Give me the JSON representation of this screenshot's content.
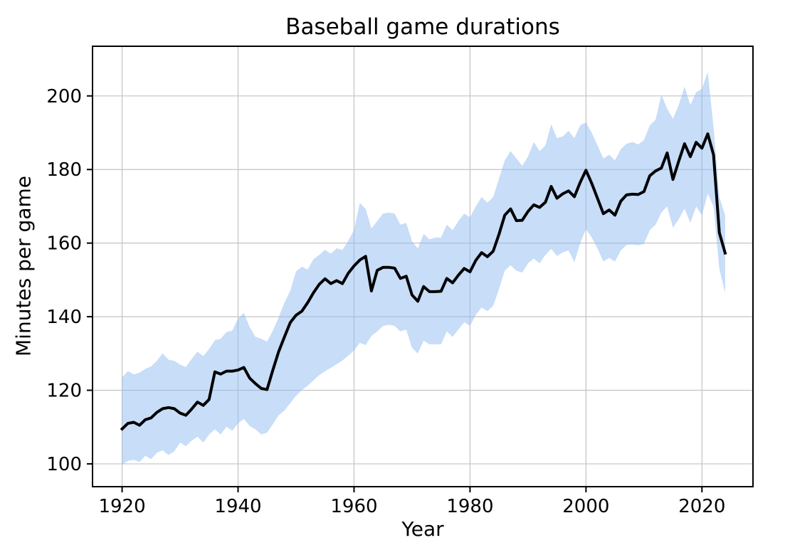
{
  "figure": {
    "title": "Baseball game durations",
    "x_axis_label": "Year",
    "y_axis_label": "Minutes per game"
  },
  "chart_data": {
    "type": "line",
    "title": "Baseball game durations",
    "xlabel": "Year",
    "ylabel": "Minutes per game",
    "legend": "none",
    "grid": true,
    "grid_color": "#c3c3c3",
    "line_color": "#000000",
    "band_fill": "#8fbbf1",
    "band_opacity": 0.5,
    "xlim": [
      1914.9,
      2028.8
    ],
    "ylim": [
      93.8,
      213.5
    ],
    "x_ticks": [
      1920,
      1940,
      1960,
      1980,
      2000,
      2020
    ],
    "y_ticks": [
      100,
      120,
      140,
      160,
      180,
      200
    ],
    "years": [
      1920,
      1921,
      1922,
      1923,
      1924,
      1925,
      1926,
      1927,
      1928,
      1929,
      1930,
      1931,
      1932,
      1933,
      1934,
      1935,
      1936,
      1937,
      1938,
      1939,
      1940,
      1941,
      1942,
      1943,
      1944,
      1945,
      1946,
      1947,
      1948,
      1949,
      1950,
      1951,
      1952,
      1953,
      1954,
      1955,
      1956,
      1957,
      1958,
      1959,
      1960,
      1961,
      1962,
      1963,
      1964,
      1965,
      1966,
      1967,
      1968,
      1969,
      1970,
      1971,
      1972,
      1973,
      1974,
      1975,
      1976,
      1977,
      1978,
      1979,
      1980,
      1981,
      1982,
      1983,
      1984,
      1985,
      1986,
      1987,
      1988,
      1989,
      1990,
      1991,
      1992,
      1993,
      1994,
      1995,
      1996,
      1997,
      1998,
      1999,
      2000,
      2001,
      2002,
      2003,
      2004,
      2005,
      2006,
      2007,
      2008,
      2009,
      2010,
      2011,
      2012,
      2013,
      2014,
      2015,
      2016,
      2017,
      2018,
      2019,
      2020,
      2021,
      2022,
      2023,
      2024
    ],
    "series": [
      {
        "name": "mean-minutes-per-game",
        "values": [
          109.5,
          111.0,
          111.3,
          110.5,
          112.0,
          112.5,
          114.0,
          115.0,
          115.3,
          115.0,
          113.8,
          113.2,
          114.9,
          116.8,
          115.9,
          117.5,
          125.0,
          124.4,
          125.2,
          125.2,
          125.5,
          126.2,
          123.3,
          121.8,
          120.5,
          120.2,
          125.5,
          130.5,
          134.5,
          138.4,
          140.4,
          141.5,
          143.8,
          146.5,
          148.8,
          150.3,
          149.0,
          149.8,
          149.0,
          151.8,
          153.8,
          155.4,
          156.4,
          147.0,
          152.6,
          153.4,
          153.4,
          153.2,
          150.4,
          151.0,
          145.9,
          144.2,
          148.2,
          146.8,
          146.8,
          146.9,
          150.4,
          149.2,
          151.3,
          153.1,
          152.2,
          155.3,
          157.4,
          156.3,
          157.8,
          162.4,
          167.6,
          169.3,
          166.1,
          166.2,
          168.6,
          170.4,
          169.7,
          171.1,
          175.4,
          172.2,
          173.4,
          174.2,
          172.6,
          176.5,
          179.8,
          176.2,
          172.1,
          168.0,
          169.0,
          167.6,
          171.4,
          173.1,
          173.3,
          173.2,
          174.0,
          178.3,
          179.6,
          180.4,
          184.5,
          177.3,
          182.3,
          187.0,
          183.5,
          187.4,
          185.8,
          189.7,
          184.0,
          162.8,
          157.3
        ]
      },
      {
        "name": "band-lower",
        "values": [
          99.8,
          100.8,
          101.1,
          100.5,
          102.2,
          101.3,
          103.0,
          103.7,
          102.4,
          103.4,
          105.8,
          104.8,
          106.3,
          107.4,
          105.8,
          108.0,
          109.4,
          108.0,
          110.1,
          109.0,
          111.0,
          112.2,
          110.3,
          109.4,
          108.0,
          108.5,
          110.8,
          113.2,
          114.5,
          116.5,
          118.5,
          120.1,
          121.2,
          122.7,
          124.1,
          125.2,
          126.1,
          127.1,
          128.1,
          129.4,
          130.8,
          132.9,
          132.3,
          134.8,
          136.0,
          137.5,
          137.8,
          137.5,
          136.0,
          136.5,
          131.5,
          130.0,
          133.5,
          132.5,
          132.5,
          132.5,
          136.0,
          134.5,
          136.5,
          138.5,
          137.5,
          140.5,
          142.5,
          141.5,
          143.0,
          147.5,
          152.5,
          154.0,
          152.5,
          152.0,
          154.5,
          155.8,
          154.5,
          156.8,
          158.4,
          156.5,
          157.5,
          158.0,
          154.8,
          160.0,
          163.8,
          161.5,
          158.5,
          155.0,
          156.0,
          155.0,
          158.0,
          159.5,
          159.6,
          159.4,
          159.8,
          163.5,
          165.0,
          168.3,
          170.0,
          164.2,
          166.5,
          169.4,
          165.5,
          170.0,
          167.5,
          173.5,
          170.0,
          153.0,
          146.5
        ]
      },
      {
        "name": "band-upper",
        "values": [
          123.5,
          125.2,
          124.3,
          124.8,
          125.8,
          126.5,
          128.0,
          130.0,
          128.3,
          128.0,
          127.0,
          126.3,
          128.5,
          130.5,
          129.3,
          131.2,
          133.6,
          134.0,
          135.8,
          136.2,
          139.5,
          141.0,
          137.2,
          134.5,
          134.0,
          133.2,
          136.2,
          139.8,
          143.8,
          147.0,
          152.3,
          153.6,
          152.8,
          155.6,
          156.8,
          158.2,
          157.1,
          158.6,
          158.1,
          160.6,
          163.6,
          170.9,
          169.3,
          164.0,
          166.0,
          168.0,
          168.3,
          168.0,
          165.0,
          165.5,
          160.5,
          158.5,
          162.5,
          161.0,
          161.5,
          161.5,
          165.0,
          163.5,
          166.0,
          168.0,
          167.0,
          170.0,
          172.5,
          171.0,
          172.5,
          177.5,
          182.5,
          185.0,
          183.0,
          181.0,
          183.5,
          187.5,
          185.0,
          186.5,
          192.3,
          188.5,
          189.0,
          190.5,
          188.5,
          192.0,
          192.8,
          190.0,
          186.5,
          183.0,
          184.0,
          182.5,
          185.5,
          187.0,
          187.5,
          186.8,
          188.0,
          192.0,
          193.5,
          200.4,
          196.5,
          193.8,
          197.5,
          202.5,
          197.5,
          201.0,
          202.0,
          206.5,
          191.5,
          172.6,
          167.5
        ]
      }
    ]
  }
}
